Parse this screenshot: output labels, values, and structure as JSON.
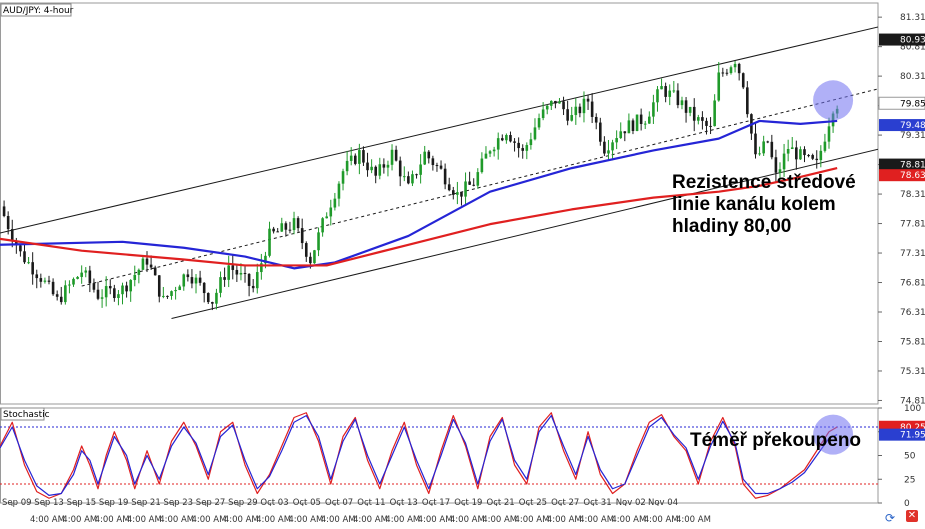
{
  "chart_data": [
    {
      "type": "candlestick",
      "title": "AUD/JPY: 4-hour",
      "ylim": [
        74.75,
        81.55
      ],
      "y_ticks": [
        "81.31",
        "80.81",
        "80.31",
        "79.81",
        "79.31",
        "78.81",
        "78.31",
        "77.81",
        "77.31",
        "76.81",
        "76.31",
        "75.81",
        "75.31",
        "74.81"
      ],
      "x_ticks": [
        "Sep 09",
        "Sep 13",
        "Sep 15",
        "Sep 19",
        "Sep 21",
        "Sep 23",
        "Sep 27",
        "Sep 29",
        "Oct 03",
        "Oct 05",
        "Oct 07",
        "Oct 11",
        "Oct 13",
        "Oct 17",
        "Oct 19",
        "Oct 21",
        "Oct 25",
        "Oct 27",
        "Oct 31",
        "Nov 02",
        "Nov 04"
      ],
      "time_labels": [
        "4:00 AM",
        "4:00 AM",
        "4:00 AM",
        "4:00 AM",
        "4:00 AM",
        "4:00 AM",
        "4:00 AM",
        "4:00 AM",
        "4:00 AM",
        "4:00 AM",
        "4:00 AM",
        "4:00 AM",
        "4:00 AM",
        "4:00 AM",
        "4:00 AM",
        "4:00 AM",
        "4:00 AM",
        "4:00 AM",
        "4:00 AM",
        "4:00 AM",
        "4:00 AM"
      ],
      "close_path": [
        [
          0,
          78.1
        ],
        [
          5,
          77.3
        ],
        [
          10,
          76.9
        ],
        [
          14,
          76.5
        ],
        [
          20,
          77.0
        ],
        [
          24,
          76.6
        ],
        [
          30,
          76.7
        ],
        [
          36,
          77.2
        ],
        [
          40,
          76.5
        ],
        [
          46,
          77.0
        ],
        [
          52,
          76.5
        ],
        [
          56,
          77.1
        ],
        [
          62,
          76.7
        ],
        [
          66,
          77.6
        ],
        [
          72,
          77.8
        ],
        [
          76,
          77.2
        ],
        [
          80,
          78.0
        ],
        [
          84,
          78.7
        ],
        [
          88,
          79.0
        ],
        [
          92,
          78.6
        ],
        [
          96,
          79.0
        ],
        [
          100,
          78.4
        ],
        [
          104,
          79.0
        ],
        [
          108,
          78.7
        ],
        [
          112,
          78.3
        ],
        [
          116,
          78.5
        ],
        [
          120,
          79.1
        ],
        [
          124,
          79.4
        ],
        [
          128,
          79.0
        ],
        [
          132,
          79.6
        ],
        [
          136,
          79.9
        ],
        [
          140,
          79.6
        ],
        [
          144,
          79.9
        ],
        [
          148,
          79.1
        ],
        [
          152,
          79.4
        ],
        [
          158,
          79.6
        ],
        [
          162,
          80.1
        ],
        [
          166,
          79.9
        ],
        [
          170,
          79.6
        ],
        [
          174,
          79.4
        ],
        [
          176,
          80.3
        ],
        [
          180,
          80.6
        ],
        [
          182,
          80.2
        ],
        [
          185,
          78.9
        ],
        [
          188,
          79.2
        ],
        [
          190,
          78.6
        ],
        [
          193,
          79.1
        ],
        [
          197,
          78.9
        ],
        [
          200,
          78.8
        ],
        [
          204,
          79.8
        ],
        [
          205,
          79.85
        ]
      ],
      "series": [
        {
          "name": "",
          "color": "#2525d6",
          "values": [
            [
              0,
              77.45
            ],
            [
              30,
              77.5
            ],
            [
              45,
              77.4
            ],
            [
              60,
              77.25
            ],
            [
              72,
              77.05
            ],
            [
              82,
              77.15
            ],
            [
              100,
              77.6
            ],
            [
              120,
              78.35
            ],
            [
              140,
              78.75
            ],
            [
              160,
              79.05
            ],
            [
              176,
              79.25
            ],
            [
              186,
              79.55
            ],
            [
              196,
              79.5
            ],
            [
              205,
              79.55
            ]
          ]
        },
        {
          "name": "",
          "color": "#e02020",
          "values": [
            [
              0,
              77.55
            ],
            [
              20,
              77.35
            ],
            [
              45,
              77.2
            ],
            [
              60,
              77.1
            ],
            [
              80,
              77.1
            ],
            [
              100,
              77.45
            ],
            [
              120,
              77.8
            ],
            [
              140,
              78.05
            ],
            [
              160,
              78.25
            ],
            [
              176,
              78.35
            ],
            [
              186,
              78.45
            ],
            [
              196,
              78.6
            ],
            [
              205,
              78.75
            ]
          ]
        }
      ],
      "channel_lines": [
        {
          "name": "upper",
          "from": [
            0,
            77.65
          ],
          "to": [
            240,
            81.55
          ]
        },
        {
          "name": "middle",
          "from": [
            20,
            76.75
          ],
          "to": [
            265,
            80.95
          ]
        },
        {
          "name": "lower",
          "from": [
            42,
            76.2
          ],
          "to": [
            265,
            79.9
          ]
        }
      ],
      "highlight": [
        204,
        79.9
      ],
      "price_labels": [
        {
          "value": "80.93",
          "price": 80.93,
          "bg": "#1a1a1a",
          "fg": "#ffffff"
        },
        {
          "value": "79.85",
          "price": 79.85,
          "bg": "#ffffff",
          "fg": "#000000"
        },
        {
          "value": "79.48",
          "price": 79.48,
          "bg": "#2a3fd0",
          "fg": "#ffffff"
        },
        {
          "value": "78.81",
          "price": 78.81,
          "bg": "#1a1a1a",
          "fg": "#ffffff"
        },
        {
          "value": "78.63",
          "price": 78.63,
          "bg": "#e02020",
          "fg": "#ffffff"
        }
      ]
    },
    {
      "type": "line",
      "title": "Stochastic",
      "ylim": [
        0,
        100
      ],
      "y_ticks": [
        "100",
        "75",
        "50",
        "25",
        "0"
      ],
      "levels": [
        80,
        20
      ],
      "series": [
        {
          "name": "",
          "color": "#e02020",
          "values": [
            [
              0,
              60
            ],
            [
              3,
              85
            ],
            [
              6,
              40
            ],
            [
              9,
              12
            ],
            [
              12,
              5
            ],
            [
              15,
              10
            ],
            [
              18,
              35
            ],
            [
              20,
              60
            ],
            [
              22,
              40
            ],
            [
              24,
              15
            ],
            [
              26,
              50
            ],
            [
              28,
              75
            ],
            [
              31,
              45
            ],
            [
              33,
              15
            ],
            [
              36,
              55
            ],
            [
              39,
              20
            ],
            [
              42,
              65
            ],
            [
              45,
              85
            ],
            [
              48,
              60
            ],
            [
              51,
              25
            ],
            [
              54,
              75
            ],
            [
              57,
              85
            ],
            [
              60,
              40
            ],
            [
              63,
              10
            ],
            [
              66,
              30
            ],
            [
              69,
              60
            ],
            [
              72,
              90
            ],
            [
              75,
              95
            ],
            [
              78,
              65
            ],
            [
              81,
              20
            ],
            [
              84,
              70
            ],
            [
              87,
              90
            ],
            [
              90,
              45
            ],
            [
              93,
              15
            ],
            [
              96,
              55
            ],
            [
              99,
              85
            ],
            [
              102,
              40
            ],
            [
              105,
              10
            ],
            [
              108,
              55
            ],
            [
              111,
              92
            ],
            [
              114,
              60
            ],
            [
              117,
              15
            ],
            [
              120,
              70
            ],
            [
              123,
              90
            ],
            [
              126,
              40
            ],
            [
              129,
              20
            ],
            [
              132,
              80
            ],
            [
              135,
              95
            ],
            [
              138,
              55
            ],
            [
              141,
              25
            ],
            [
              144,
              75
            ],
            [
              147,
              30
            ],
            [
              150,
              10
            ],
            [
              153,
              20
            ],
            [
              156,
              55
            ],
            [
              159,
              85
            ],
            [
              162,
              93
            ],
            [
              165,
              70
            ],
            [
              168,
              55
            ],
            [
              171,
              20
            ],
            [
              174,
              65
            ],
            [
              177,
              90
            ],
            [
              180,
              60
            ],
            [
              182,
              20
            ],
            [
              185,
              5
            ],
            [
              188,
              8
            ],
            [
              191,
              15
            ],
            [
              194,
              25
            ],
            [
              197,
              35
            ],
            [
              200,
              55
            ],
            [
              203,
              75
            ],
            [
              205,
              80
            ]
          ]
        },
        {
          "name": "",
          "color": "#2525d6",
          "values": [
            [
              0,
              58
            ],
            [
              3,
              80
            ],
            [
              6,
              45
            ],
            [
              9,
              18
            ],
            [
              12,
              8
            ],
            [
              15,
              10
            ],
            [
              18,
              30
            ],
            [
              20,
              55
            ],
            [
              22,
              45
            ],
            [
              24,
              20
            ],
            [
              26,
              45
            ],
            [
              28,
              70
            ],
            [
              31,
              50
            ],
            [
              33,
              20
            ],
            [
              36,
              50
            ],
            [
              39,
              25
            ],
            [
              42,
              60
            ],
            [
              45,
              80
            ],
            [
              48,
              63
            ],
            [
              51,
              30
            ],
            [
              54,
              70
            ],
            [
              57,
              82
            ],
            [
              60,
              45
            ],
            [
              63,
              15
            ],
            [
              66,
              28
            ],
            [
              69,
              55
            ],
            [
              72,
              85
            ],
            [
              75,
              92
            ],
            [
              78,
              70
            ],
            [
              81,
              25
            ],
            [
              84,
              65
            ],
            [
              87,
              88
            ],
            [
              90,
              50
            ],
            [
              93,
              20
            ],
            [
              96,
              50
            ],
            [
              99,
              80
            ],
            [
              102,
              45
            ],
            [
              105,
              15
            ],
            [
              108,
              50
            ],
            [
              111,
              88
            ],
            [
              114,
              63
            ],
            [
              117,
              20
            ],
            [
              120,
              65
            ],
            [
              123,
              88
            ],
            [
              126,
              45
            ],
            [
              129,
              25
            ],
            [
              132,
              75
            ],
            [
              135,
              92
            ],
            [
              138,
              60
            ],
            [
              141,
              30
            ],
            [
              144,
              70
            ],
            [
              147,
              35
            ],
            [
              150,
              15
            ],
            [
              153,
              20
            ],
            [
              156,
              50
            ],
            [
              159,
              80
            ],
            [
              162,
              90
            ],
            [
              165,
              72
            ],
            [
              168,
              58
            ],
            [
              171,
              25
            ],
            [
              174,
              60
            ],
            [
              177,
              86
            ],
            [
              180,
              63
            ],
            [
              182,
              25
            ],
            [
              185,
              10
            ],
            [
              188,
              10
            ],
            [
              191,
              15
            ],
            [
              194,
              22
            ],
            [
              197,
              32
            ],
            [
              200,
              50
            ],
            [
              203,
              68
            ],
            [
              205,
              72
            ]
          ]
        }
      ],
      "highlight": [
        204,
        72
      ],
      "price_labels": [
        {
          "value": "80.25",
          "price": 80.25,
          "bg": "#e02020",
          "fg": "#ffffff"
        },
        {
          "value": "71.95",
          "price": 71.95,
          "bg": "#2a3fd0",
          "fg": "#ffffff"
        }
      ]
    }
  ],
  "annotations": {
    "main": "Rezistence středové linie kanálu kolem hladiny 80,00",
    "stochastic": "Téměř překoupeno"
  }
}
